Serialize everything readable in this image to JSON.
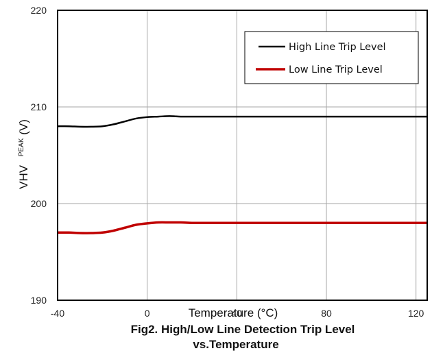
{
  "chart_data": {
    "type": "line",
    "xlabel": "Temperature (°C)",
    "ylabel": "VHV",
    "ylabel_sub": "PEAK",
    "ylabel_unit": "(V)",
    "xlim": [
      -40,
      125
    ],
    "ylim": [
      190,
      220
    ],
    "x_ticks": [
      -40,
      0,
      40,
      80,
      120
    ],
    "x_tick_labels": [
      "-40",
      "0",
      "40",
      "80",
      "120"
    ],
    "y_ticks": [
      190,
      200,
      210,
      220
    ],
    "y_tick_labels": [
      "190",
      "200",
      "210",
      "220"
    ],
    "x_tick_overlap_label": "40",
    "grid": true,
    "legend_position": "top-right",
    "caption_line1": "Fig2. High/Low Line Detection Trip Level",
    "caption_line2": "vs.Temperature",
    "series": [
      {
        "name": "High Line Trip Level",
        "color": "#000000",
        "x": [
          -40,
          -35,
          -30,
          -25,
          -20,
          -15,
          -10,
          -5,
          0,
          5,
          10,
          15,
          20,
          25,
          40,
          60,
          80,
          100,
          125
        ],
        "y": [
          208.0,
          208.0,
          207.95,
          207.95,
          208.0,
          208.2,
          208.5,
          208.8,
          208.95,
          209.0,
          209.05,
          209.0,
          209.0,
          209.0,
          209.0,
          209.0,
          209.0,
          209.0,
          209.0
        ]
      },
      {
        "name": "Low Line Trip Level",
        "color": "#c00000",
        "x": [
          -40,
          -35,
          -30,
          -25,
          -20,
          -15,
          -10,
          -5,
          0,
          5,
          10,
          15,
          20,
          25,
          40,
          60,
          80,
          100,
          125
        ],
        "y": [
          197.0,
          197.0,
          196.95,
          196.95,
          197.0,
          197.2,
          197.5,
          197.8,
          197.95,
          198.05,
          198.05,
          198.05,
          198.0,
          198.0,
          198.0,
          198.0,
          198.0,
          198.0,
          198.0
        ]
      }
    ]
  }
}
